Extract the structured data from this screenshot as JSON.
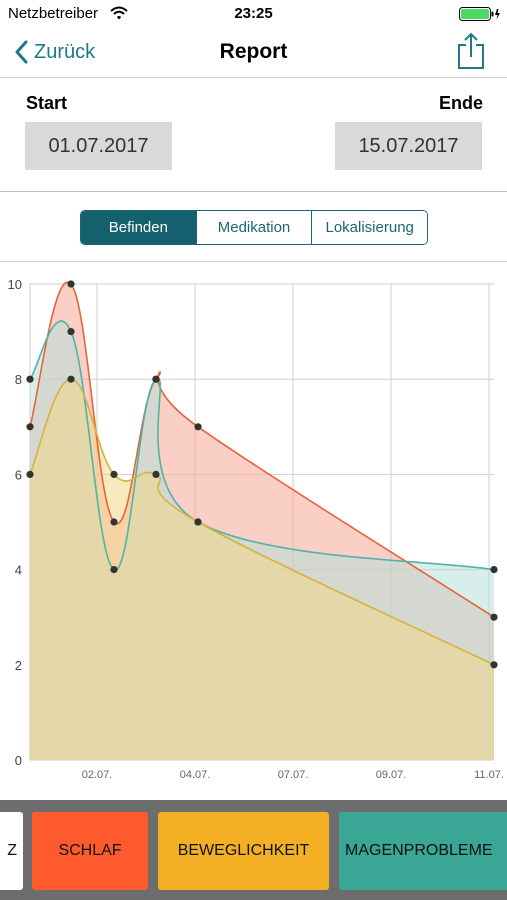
{
  "status_bar": {
    "carrier": "Netzbetreiber",
    "time": "23:25"
  },
  "nav": {
    "back_label": "Zurück",
    "title": "Report"
  },
  "dates": {
    "start_label": "Start",
    "end_label": "Ende",
    "start_value": "01.07.2017",
    "end_value": "15.07.2017"
  },
  "segments": [
    "Befinden",
    "Medikation",
    "Lokalisierung"
  ],
  "selected_segment": "Befinden",
  "categories": [
    {
      "label": "Z",
      "color": "#ffffff"
    },
    {
      "label": "SCHLAF",
      "color": "#ff5a2d"
    },
    {
      "label": "BEWEGLICHKEIT",
      "color": "#f4b024"
    },
    {
      "label": "MAGENPROBLEME",
      "color": "#3aa695"
    }
  ],
  "chart_data": {
    "type": "area",
    "x_ticks": [
      "02.07.",
      "04.07.",
      "07.07.",
      "09.07.",
      "11.07."
    ],
    "y_ticks": [
      "0",
      "2",
      "4",
      "6",
      "8",
      "10"
    ],
    "ylim": [
      0,
      10
    ],
    "grid": true,
    "series": [
      {
        "color": "#e8623a",
        "fill": "#f4a897",
        "points": [
          [
            "01.07.",
            7
          ],
          [
            "01.07.",
            10
          ],
          [
            "03.07.",
            5
          ],
          [
            "03.07.",
            8
          ],
          [
            "04.07.",
            7
          ],
          [
            "11.07.",
            3
          ]
        ]
      },
      {
        "color": "#4fb3a8",
        "fill": "#b8e0da",
        "points": [
          [
            "01.07.",
            8
          ],
          [
            "01.07.",
            9
          ],
          [
            "03.07.",
            4
          ],
          [
            "03.07.",
            8
          ],
          [
            "04.07.",
            5
          ],
          [
            "11.07.",
            4
          ]
        ]
      },
      {
        "color": "#d4b33a",
        "fill": "#f0d98a",
        "points": [
          [
            "01.07.",
            6
          ],
          [
            "01.07.",
            8
          ],
          [
            "03.07.",
            6
          ],
          [
            "03.07.",
            6
          ],
          [
            "04.07.",
            5
          ],
          [
            "11.07.",
            2
          ]
        ]
      }
    ]
  }
}
